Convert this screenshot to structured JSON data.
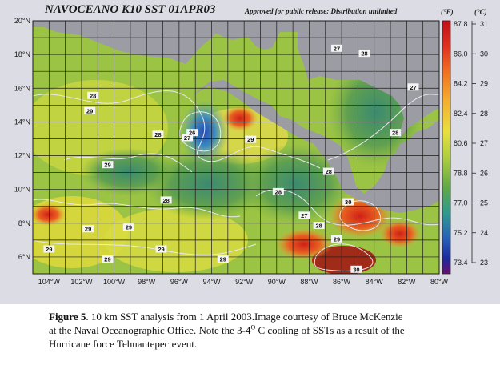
{
  "figure": {
    "title": "NAVOCEANO K10 SST 01APR03",
    "release_note": "Approved for public release: Distribution unlimited",
    "units": {
      "f": "(°F)",
      "c": "(°C)"
    },
    "map": {
      "lat_labels": [
        "20°N",
        "18°N",
        "16°N",
        "14°N",
        "12°N",
        "10°N",
        "8°N",
        "6°N"
      ],
      "lon_labels": [
        "104°W",
        "102°W",
        "100°W",
        "98°W",
        "96°W",
        "94°W",
        "92°W",
        "90°W",
        "88°W",
        "86°W",
        "84°W",
        "82°W",
        "80°W"
      ],
      "land_color": "#9c9ca4",
      "grid_color": "#1a1a1a",
      "contour_labels": [
        {
          "text": "27",
          "lon": -86.3,
          "lat": 18.3
        },
        {
          "text": "28",
          "lon": -84.6,
          "lat": 18.0
        },
        {
          "text": "27",
          "lon": -81.6,
          "lat": 16.0
        },
        {
          "text": "28",
          "lon": -101.3,
          "lat": 15.5
        },
        {
          "text": "29",
          "lon": -101.5,
          "lat": 14.6
        },
        {
          "text": "28",
          "lon": -97.3,
          "lat": 13.2
        },
        {
          "text": "27",
          "lon": -95.5,
          "lat": 13.0
        },
        {
          "text": "26",
          "lon": -95.2,
          "lat": 13.3
        },
        {
          "text": "29",
          "lon": -91.6,
          "lat": 12.9
        },
        {
          "text": "28",
          "lon": -82.7,
          "lat": 13.3
        },
        {
          "text": "29",
          "lon": -100.4,
          "lat": 11.4
        },
        {
          "text": "28",
          "lon": -86.8,
          "lat": 11.0
        },
        {
          "text": "28",
          "lon": -89.9,
          "lat": 9.8
        },
        {
          "text": "28",
          "lon": -96.8,
          "lat": 9.3
        },
        {
          "text": "30",
          "lon": -85.6,
          "lat": 9.2
        },
        {
          "text": "27",
          "lon": -88.3,
          "lat": 8.4
        },
        {
          "text": "28",
          "lon": -87.4,
          "lat": 7.8
        },
        {
          "text": "29",
          "lon": -101.6,
          "lat": 7.6
        },
        {
          "text": "29",
          "lon": -99.1,
          "lat": 7.7
        },
        {
          "text": "29",
          "lon": -86.3,
          "lat": 7.0
        },
        {
          "text": "29",
          "lon": -104.0,
          "lat": 6.4
        },
        {
          "text": "29",
          "lon": -97.1,
          "lat": 6.4
        },
        {
          "text": "29",
          "lon": -100.4,
          "lat": 5.8
        },
        {
          "text": "29",
          "lon": -93.3,
          "lat": 5.8
        },
        {
          "text": "30",
          "lon": -85.1,
          "lat": 5.2
        }
      ]
    },
    "colorbar": {
      "f_labels": [
        "87.8",
        "86.0",
        "84.2",
        "82.4",
        "80.6",
        "78.8",
        "77.0",
        "75.2",
        "73.4"
      ],
      "c_labels": [
        "31",
        "30",
        "29",
        "28",
        "27",
        "26",
        "25",
        "24",
        "23"
      ],
      "colors": [
        "#c01018",
        "#e03020",
        "#f07020",
        "#f4b030",
        "#e8e040",
        "#a8cc40",
        "#60a848",
        "#309a90",
        "#2860b8",
        "#1c2a9c",
        "#6a1070"
      ]
    }
  },
  "caption": {
    "label": "Figure 5",
    "line1": ". 10 km SST analysis from 1 April 2003.Image courtesy of Bruce McKenzie",
    "line2_pre": "at the Naval Oceanographic Office. Note the 3-4",
    "line2_sup": "O",
    "line2_post": " C cooling of SSTs as a result of the",
    "line3": "Hurricane force Tehuantepec event."
  }
}
